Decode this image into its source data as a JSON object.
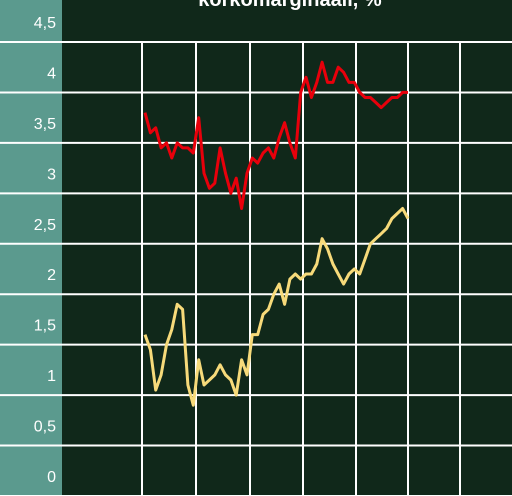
{
  "chart_data": {
    "type": "line",
    "title": "korkomarginaali, %",
    "categories": [
      null,
      null,
      null,
      null,
      null,
      null,
      null,
      null,
      null,
      null,
      null,
      null,
      null,
      null,
      null,
      null,
      null,
      null,
      null,
      null,
      null,
      null,
      null,
      null,
      null,
      null,
      null,
      null,
      null,
      null,
      null,
      null,
      null,
      null,
      null,
      null,
      null,
      null,
      null,
      null,
      null,
      null,
      null,
      null,
      null,
      null,
      null,
      null,
      null,
      null
    ],
    "series": [
      {
        "color": "#e8000b",
        "values": [
          3.8,
          3.6,
          3.65,
          3.45,
          3.5,
          3.35,
          3.5,
          3.45,
          3.45,
          3.4,
          3.75,
          3.2,
          3.05,
          3.1,
          3.45,
          3.2,
          3.0,
          3.15,
          2.85,
          3.2,
          3.35,
          3.3,
          3.4,
          3.45,
          3.35,
          3.55,
          3.7,
          3.5,
          3.35,
          4.0,
          4.15,
          3.95,
          4.1,
          4.3,
          4.1,
          4.1,
          4.25,
          4.2,
          4.1,
          4.1,
          4.0,
          3.95,
          3.95,
          3.9,
          3.85,
          3.9,
          3.95,
          3.95,
          4.0,
          4.0
        ]
      },
      {
        "color": "#f7da7a",
        "values": [
          1.6,
          1.45,
          1.05,
          1.2,
          1.5,
          1.65,
          1.9,
          1.85,
          1.1,
          0.9,
          1.35,
          1.1,
          1.15,
          1.2,
          1.3,
          1.2,
          1.15,
          1.0,
          1.35,
          1.2,
          1.6,
          1.6,
          1.8,
          1.85,
          2.0,
          2.1,
          1.9,
          2.15,
          2.2,
          2.15,
          2.2,
          2.2,
          2.3,
          2.55,
          2.45,
          2.3,
          2.2,
          2.1,
          2.2,
          2.25,
          2.2,
          2.35,
          2.5,
          2.55,
          2.6,
          2.65,
          2.75,
          2.8,
          2.85,
          2.75
        ]
      }
    ],
    "ylim": [
      0,
      4.5
    ],
    "yticks": [
      0,
      {
        "value": 0.5,
        "label": "0,5"
      },
      1,
      {
        "value": 1.5,
        "label": "1,5"
      },
      2,
      {
        "value": 2.5,
        "label": "2,5"
      },
      3,
      {
        "value": 3.5,
        "label": "3,5"
      },
      4,
      {
        "value": 4.5,
        "label": "4,5"
      }
    ],
    "grid": true
  }
}
